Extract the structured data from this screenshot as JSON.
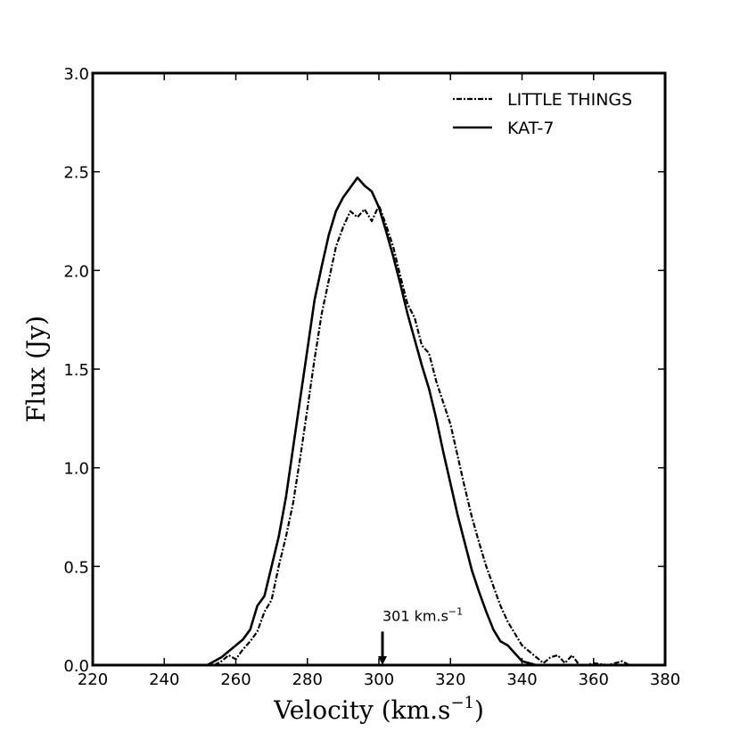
{
  "chart_data": {
    "type": "line",
    "title": "",
    "xlabel": "Velocity (km.s",
    "xlabel_sup": "−1",
    "xlabel_close": ")",
    "ylabel": "Flux (Jy)",
    "xlim": [
      220,
      380
    ],
    "ylim": [
      0,
      3.0
    ],
    "xticks": [
      220,
      240,
      260,
      280,
      300,
      320,
      340,
      360,
      380
    ],
    "yticks": [
      0.0,
      0.5,
      1.0,
      1.5,
      2.0,
      2.5,
      3.0
    ],
    "ytick_labels": [
      "0.0",
      "0.5",
      "1.0",
      "1.5",
      "2.0",
      "2.5",
      "3.0"
    ],
    "grid": false,
    "legend_position": "top-right",
    "series": [
      {
        "name": "LITTLE THINGS",
        "style": "dashdot",
        "color": "#000000",
        "x": [
          250,
          254,
          256,
          258,
          260,
          262,
          264,
          266,
          268,
          270,
          272,
          274,
          276,
          278,
          280,
          282,
          284,
          286,
          288,
          290,
          292,
          294,
          296,
          298,
          300,
          302,
          304,
          306,
          308,
          310,
          312,
          314,
          316,
          318,
          320,
          322,
          324,
          326,
          328,
          330,
          332,
          334,
          336,
          338,
          340,
          342,
          344,
          346,
          348,
          350,
          352,
          354,
          356,
          358,
          360,
          364,
          368,
          370
        ],
        "y": [
          0.0,
          0.0,
          0.02,
          0.05,
          0.03,
          0.08,
          0.12,
          0.17,
          0.27,
          0.33,
          0.5,
          0.65,
          0.82,
          1.05,
          1.3,
          1.55,
          1.78,
          1.95,
          2.12,
          2.22,
          2.3,
          2.27,
          2.31,
          2.25,
          2.33,
          2.23,
          2.12,
          1.97,
          1.83,
          1.76,
          1.62,
          1.58,
          1.44,
          1.33,
          1.22,
          1.06,
          0.9,
          0.75,
          0.62,
          0.5,
          0.4,
          0.3,
          0.22,
          0.16,
          0.1,
          0.07,
          0.04,
          0.01,
          0.04,
          0.05,
          0.01,
          0.05,
          0.0,
          0.0,
          0.01,
          0.0,
          0.02,
          0.0
        ]
      },
      {
        "name": "KAT-7",
        "style": "solid",
        "color": "#000000",
        "x": [
          250,
          252,
          254,
          256,
          258,
          260,
          262,
          264,
          266,
          268,
          270,
          272,
          274,
          276,
          278,
          280,
          282,
          284,
          286,
          288,
          290,
          292,
          294,
          296,
          298,
          300,
          302,
          304,
          306,
          308,
          310,
          312,
          314,
          316,
          318,
          320,
          322,
          324,
          326,
          328,
          330,
          332,
          334,
          336,
          338,
          340,
          342,
          344,
          346,
          348,
          350,
          352
        ],
        "y": [
          0.0,
          0.0,
          0.02,
          0.04,
          0.07,
          0.1,
          0.13,
          0.18,
          0.3,
          0.35,
          0.5,
          0.65,
          0.85,
          1.1,
          1.35,
          1.6,
          1.85,
          2.02,
          2.18,
          2.3,
          2.37,
          2.42,
          2.47,
          2.43,
          2.4,
          2.32,
          2.2,
          2.07,
          1.93,
          1.78,
          1.65,
          1.52,
          1.4,
          1.25,
          1.08,
          0.92,
          0.76,
          0.62,
          0.48,
          0.37,
          0.27,
          0.18,
          0.12,
          0.1,
          0.06,
          0.02,
          0.01,
          0.0,
          0.0,
          0.0,
          0.0,
          0.0
        ]
      }
    ],
    "annotations": [
      {
        "text": "301 km.s",
        "sup": "−1",
        "arrow_x": 301,
        "arrow_y_tip": 0.0,
        "arrow_y_tail": 0.17
      }
    ]
  }
}
